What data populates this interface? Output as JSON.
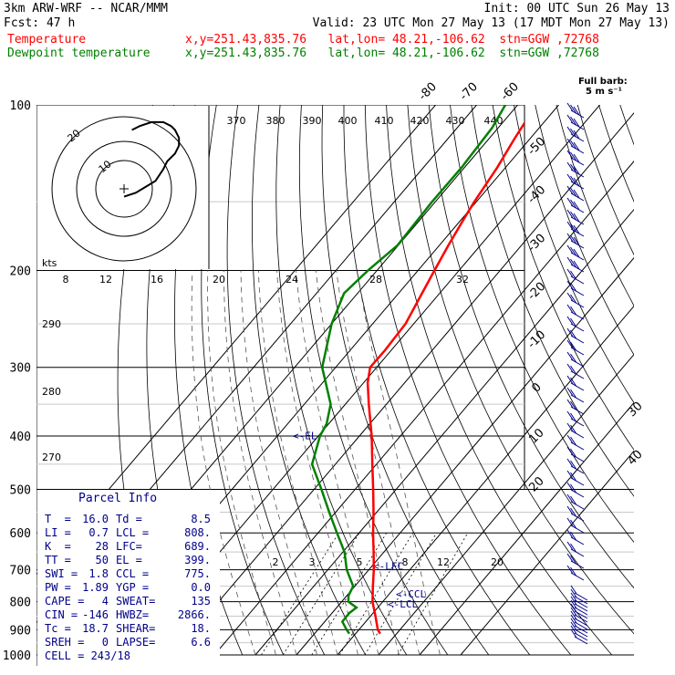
{
  "header": {
    "line1_left": "3km ARW-WRF -- NCAR/MMM",
    "line1_right": "Init: 00 UTC Sun 26 May 13",
    "line2_left": "Fcst:    47 h",
    "line2_right": "Valid: 23 UTC Mon 27 May 13 (17 MDT Mon 27 May 13)",
    "temp_label": "Temperature",
    "temp_info": "x,y=251.43,835.76   lat,lon= 48.21,-106.62  stn=GGW ,72768",
    "dew_label": "Dewpoint temperature",
    "dew_info": "x,y=251.43,835.76   lat,lon= 48.21,-106.62  stn=GGW ,72768"
  },
  "barb_legend": {
    "line1": "Full barb:",
    "line2": "5 m s⁻¹"
  },
  "colors": {
    "temperature": "#ff0000",
    "dewpoint": "#008000",
    "parcel": "#00008b",
    "hodograph": "#000000"
  },
  "chart_data": {
    "type": "skew-T log-P sounding",
    "pressure_ticks": [
      "100",
      "200",
      "300",
      "400",
      "500",
      "600",
      "700",
      "800",
      "900",
      "1000"
    ],
    "pressure_levels": [
      100,
      200,
      300,
      400,
      500,
      600,
      700,
      800,
      900,
      1000
    ],
    "isotherm_labels": [
      "-80",
      "-70",
      "-60",
      "-50",
      "-40",
      "-30",
      "-20",
      "-10",
      "0",
      "10",
      "20",
      "30",
      "40"
    ],
    "isotherm_values": [
      -80,
      -70,
      -60,
      -50,
      -40,
      -30,
      -20,
      -10,
      0,
      10,
      20,
      30,
      40
    ],
    "theta_labels": [
      "370",
      "380",
      "390",
      "400",
      "410",
      "420",
      "430",
      "440"
    ],
    "mixing_ratio_upper": [
      "8",
      "12",
      "16",
      "20",
      "24",
      "28",
      "32"
    ],
    "mixing_ratio_lower": [
      "2",
      "3",
      "5",
      "8",
      "12",
      "20"
    ],
    "adiabat_labels": [
      "290",
      "280",
      "270"
    ],
    "temperature": [
      {
        "p": 915,
        "t": 16.0
      },
      {
        "p": 900,
        "t": 14.6
      },
      {
        "p": 850,
        "t": 11.2
      },
      {
        "p": 800,
        "t": 7.5
      },
      {
        "p": 750,
        "t": 4.4
      },
      {
        "p": 700,
        "t": 1.2
      },
      {
        "p": 650,
        "t": -2.5
      },
      {
        "p": 600,
        "t": -6.6
      },
      {
        "p": 550,
        "t": -10.8
      },
      {
        "p": 500,
        "t": -15.6
      },
      {
        "p": 450,
        "t": -21.0
      },
      {
        "p": 400,
        "t": -27.0
      },
      {
        "p": 350,
        "t": -34.3
      },
      {
        "p": 320,
        "t": -39.0
      },
      {
        "p": 300,
        "t": -41.6
      },
      {
        "p": 280,
        "t": -41.5
      },
      {
        "p": 250,
        "t": -42.0
      },
      {
        "p": 220,
        "t": -44.3
      },
      {
        "p": 200,
        "t": -46.0
      },
      {
        "p": 180,
        "t": -47.8
      },
      {
        "p": 160,
        "t": -49.6
      },
      {
        "p": 150,
        "t": -50.5
      },
      {
        "p": 130,
        "t": -52.0
      },
      {
        "p": 115,
        "t": -53.8
      },
      {
        "p": 100,
        "t": -55.5
      }
    ],
    "dewpoint": [
      {
        "p": 915,
        "t": 8.5
      },
      {
        "p": 900,
        "t": 7.0
      },
      {
        "p": 870,
        "t": 4.3
      },
      {
        "p": 840,
        "t": 4.2
      },
      {
        "p": 820,
        "t": 4.8
      },
      {
        "p": 800,
        "t": 1.6
      },
      {
        "p": 780,
        "t": 0.4
      },
      {
        "p": 750,
        "t": -0.4
      },
      {
        "p": 700,
        "t": -5.4
      },
      {
        "p": 650,
        "t": -9.6
      },
      {
        "p": 600,
        "t": -15.4
      },
      {
        "p": 550,
        "t": -21.6
      },
      {
        "p": 500,
        "t": -28.2
      },
      {
        "p": 450,
        "t": -35.7
      },
      {
        "p": 400,
        "t": -39.6
      },
      {
        "p": 380,
        "t": -40.5
      },
      {
        "p": 350,
        "t": -43.6
      },
      {
        "p": 300,
        "t": -53.3
      },
      {
        "p": 250,
        "t": -60.0
      },
      {
        "p": 220,
        "t": -63.3
      },
      {
        "p": 200,
        "t": -62.2
      },
      {
        "p": 180,
        "t": -60.2
      },
      {
        "p": 150,
        "t": -60.8
      },
      {
        "p": 130,
        "t": -60.7
      },
      {
        "p": 110,
        "t": -61.5
      },
      {
        "p": 100,
        "t": -63.0
      }
    ],
    "levels_marked": [
      {
        "label": "<-EL",
        "p": 399
      },
      {
        "label": "<-LFC",
        "p": 689
      },
      {
        "label": "<-CCL",
        "p": 775
      },
      {
        "label": "<-LCL",
        "p": 808
      }
    ],
    "hodograph": {
      "ring_labels": [
        "10",
        "20"
      ],
      "axis_label": "kts",
      "points_u": [
        0,
        3,
        8,
        10,
        11,
        13,
        14,
        14,
        13,
        12,
        10,
        7,
        4,
        2
      ],
      "points_v": [
        -2,
        -1,
        2,
        5,
        7,
        9,
        11,
        13,
        15,
        16,
        17,
        17,
        16,
        15
      ]
    }
  },
  "parcel_info": {
    "title": "Parcel Info",
    "rows": [
      [
        "T  =",
        "16.0",
        "Td =",
        "8.5"
      ],
      [
        "LI =",
        "0.7",
        "LCL =",
        "808."
      ],
      [
        "K  =",
        "28",
        "LFC=",
        "689."
      ],
      [
        "TT =",
        "50",
        "EL =",
        "399."
      ],
      [
        "SWI =",
        "1.8",
        "CCL =",
        "775."
      ],
      [
        "PW =",
        "1.89",
        "YGP =",
        "0.0"
      ],
      [
        "CAPE =",
        "4",
        "SWEAT=",
        "135"
      ],
      [
        "CIN =",
        "-146",
        "HWBZ=",
        "2866."
      ],
      [
        "Tc =",
        "18.7",
        "SHEAR=",
        "18."
      ],
      [
        "SREH =",
        "0",
        "LAPSE=",
        "6.6"
      ]
    ],
    "last_row": "CELL = 243/18"
  }
}
